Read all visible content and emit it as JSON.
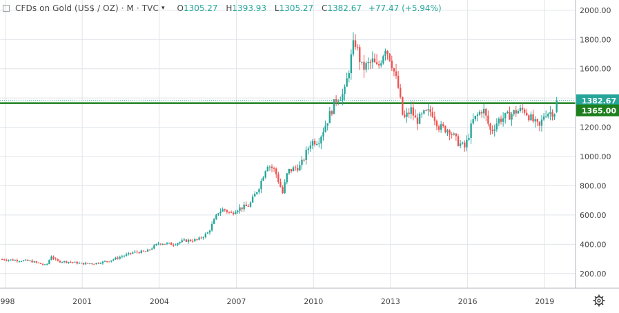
{
  "header": {
    "title": "CFDs on Gold (US$ / OZ) · M · TVC",
    "ohlc": [
      {
        "label": "O",
        "value": "1305.27"
      },
      {
        "label": "H",
        "value": "1393.93"
      },
      {
        "label": "L",
        "value": "1305.27"
      },
      {
        "label": "C",
        "value": "1382.67"
      }
    ],
    "change": "+77.47 (+5.94%)"
  },
  "icons": {
    "symbol_icon": "square-outline-icon",
    "menu_icon": "chevron-down-icon",
    "settings_icon": "gear-icon"
  },
  "colors": {
    "up": "#26a69a",
    "down": "#ef5350",
    "level_line": "#1e7f1e",
    "price_label_bg": "#26a69a",
    "level_label_bg": "#1e7f1e",
    "grid": "#e1e4e8",
    "axis_text": "#444444"
  },
  "chart_data": {
    "type": "candlestick",
    "timeframe": "M",
    "x_tick_labels": [
      "1998",
      "2001",
      "2004",
      "2007",
      "2010",
      "2013",
      "2016",
      "2019"
    ],
    "y_tick_labels": [
      "200.00",
      "400.00",
      "600.00",
      "800.00",
      "1000.00",
      "1200.00",
      "1400.00",
      "1600.00",
      "1800.00",
      "2000.00"
    ],
    "ylim": [
      100,
      2070
    ],
    "xlim": [
      1997.8,
      2020.2
    ],
    "grid": true,
    "last_price": 1382.67,
    "last_price_label": "1382.67",
    "horizontal_level": 1365.0,
    "horizontal_level_label": "1365.00",
    "anchors": [
      [
        1997.8,
        298
      ],
      [
        1999.0,
        285
      ],
      [
        1999.6,
        255
      ],
      [
        1999.8,
        320
      ],
      [
        2000.0,
        285
      ],
      [
        2000.5,
        280
      ],
      [
        2001.0,
        268
      ],
      [
        2001.5,
        270
      ],
      [
        2002.0,
        285
      ],
      [
        2002.5,
        315
      ],
      [
        2003.0,
        345
      ],
      [
        2003.5,
        350
      ],
      [
        2004.0,
        410
      ],
      [
        2004.5,
        400
      ],
      [
        2005.0,
        425
      ],
      [
        2005.5,
        430
      ],
      [
        2005.9,
        480
      ],
      [
        2006.3,
        620
      ],
      [
        2006.5,
        640
      ],
      [
        2006.8,
        610
      ],
      [
        2007.0,
        640
      ],
      [
        2007.5,
        665
      ],
      [
        2007.9,
        800
      ],
      [
        2008.2,
        950
      ],
      [
        2008.5,
        905
      ],
      [
        2008.8,
        750
      ],
      [
        2009.0,
        900
      ],
      [
        2009.5,
        935
      ],
      [
        2009.9,
        1100
      ],
      [
        2010.2,
        1110
      ],
      [
        2010.5,
        1230
      ],
      [
        2010.9,
        1400
      ],
      [
        2011.2,
        1430
      ],
      [
        2011.6,
        1800
      ],
      [
        2011.9,
        1600
      ],
      [
        2012.3,
        1650
      ],
      [
        2012.5,
        1600
      ],
      [
        2012.8,
        1750
      ],
      [
        2013.0,
        1670
      ],
      [
        2013.3,
        1470
      ],
      [
        2013.5,
        1250
      ],
      [
        2013.8,
        1320
      ],
      [
        2014.0,
        1240
      ],
      [
        2014.3,
        1290
      ],
      [
        2014.6,
        1310
      ],
      [
        2014.9,
        1200
      ],
      [
        2015.3,
        1180
      ],
      [
        2015.6,
        1100
      ],
      [
        2015.9,
        1060
      ],
      [
        2016.2,
        1240
      ],
      [
        2016.6,
        1330
      ],
      [
        2016.9,
        1170
      ],
      [
        2017.2,
        1250
      ],
      [
        2017.6,
        1280
      ],
      [
        2017.9,
        1310
      ],
      [
        2018.2,
        1320
      ],
      [
        2018.6,
        1230
      ],
      [
        2018.8,
        1200
      ],
      [
        2019.0,
        1300
      ],
      [
        2019.4,
        1305
      ],
      [
        2019.5,
        1382.67
      ]
    ]
  }
}
